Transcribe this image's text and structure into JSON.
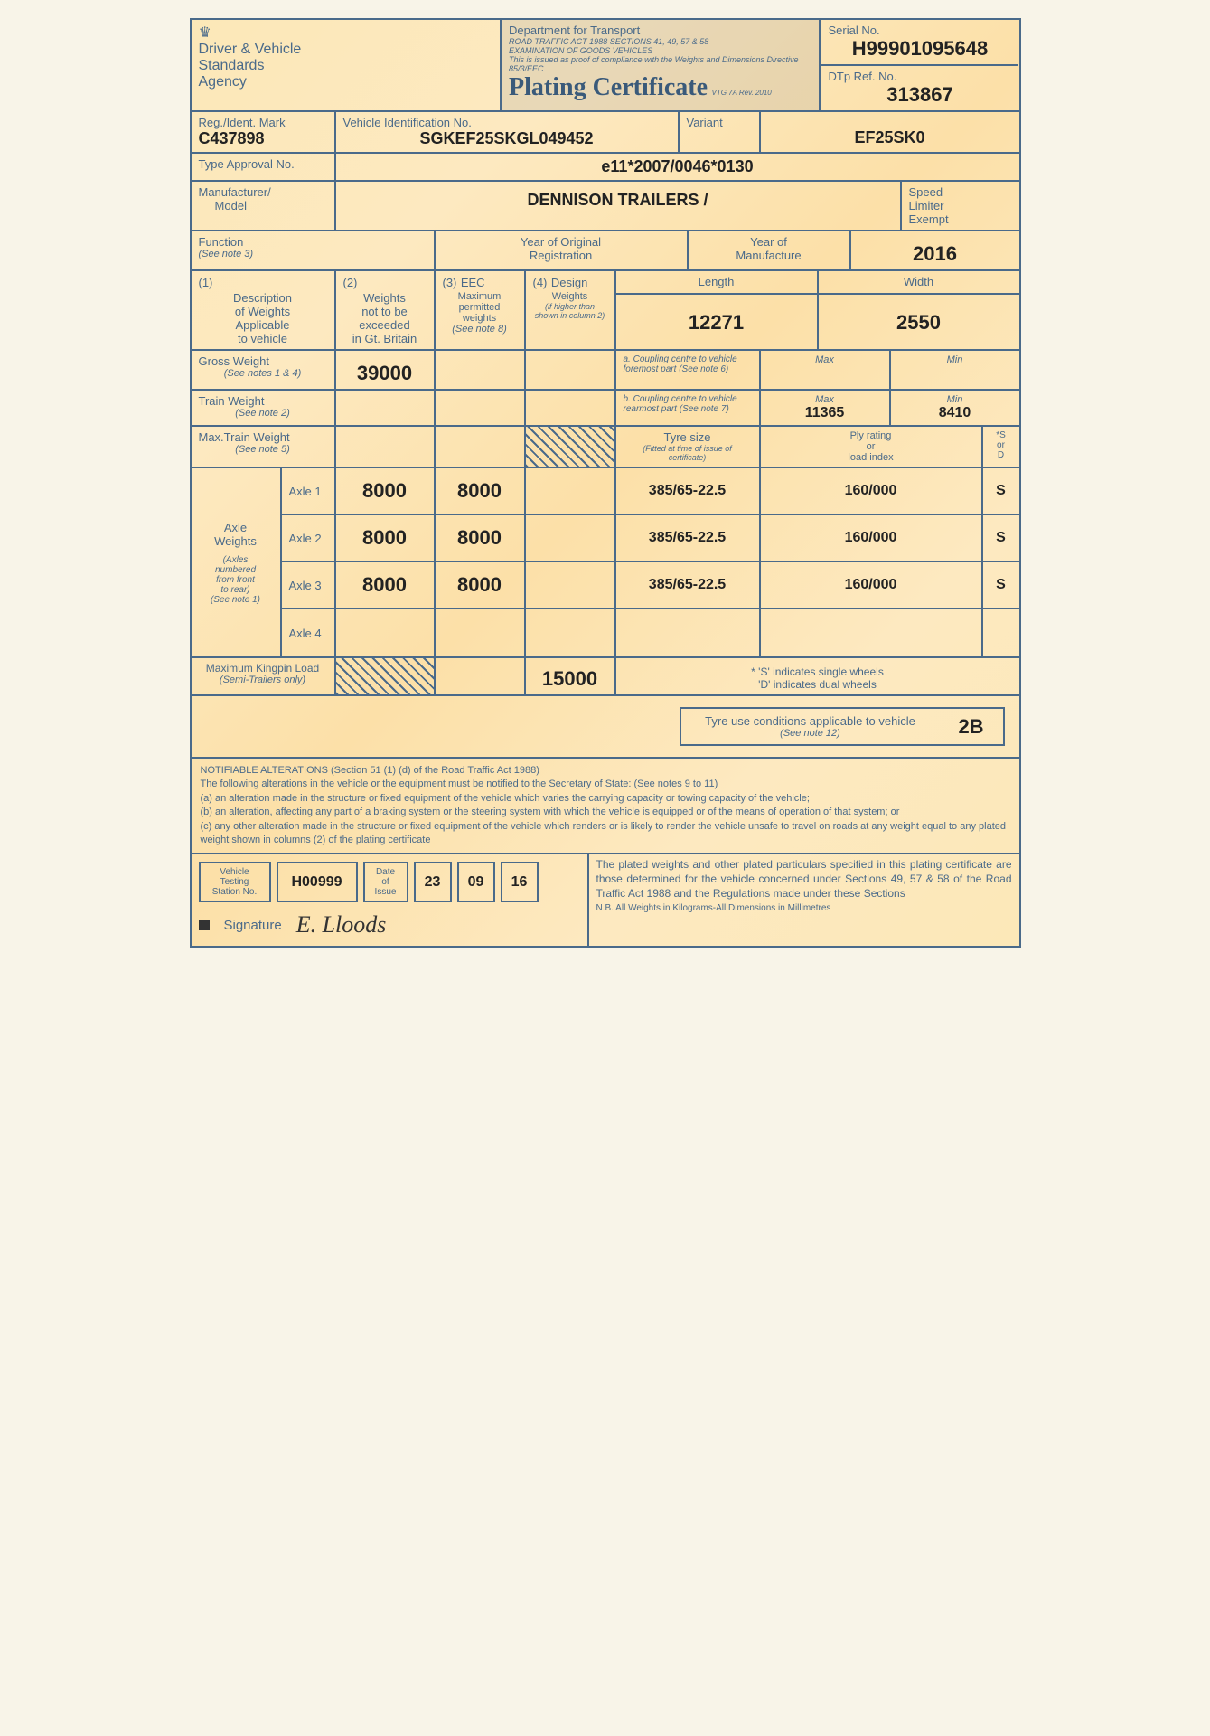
{
  "header": {
    "agency_line1": "Driver & Vehicle",
    "agency_line2": "Standards",
    "agency_line3": "Agency",
    "dept": "Department for Transport",
    "act": "ROAD TRAFFIC ACT 1988 SECTIONS 41, 49, 57 & 58",
    "exam": "EXAMINATION OF GOODS VEHICLES",
    "issued": "This is issued as proof of compliance with the Weights and Dimensions Directive 85/3/EEC",
    "title": "Plating Certificate",
    "form_ref": "VTG 7A Rev. 2010",
    "serial_label": "Serial No.",
    "serial": "H99901095648",
    "dtp_label": "DTp Ref. No.",
    "dtp": "313867"
  },
  "ident": {
    "reg_label": "Reg./Ident. Mark",
    "reg": "C437898",
    "vin_label": "Vehicle Identification No.",
    "vin": "SGKEF25SKGL049452",
    "variant_label": "Variant",
    "variant": "EF25SK0",
    "type_label": "Type Approval No.",
    "type": "e11*2007/0046*0130",
    "mfr_label": "Manufacturer/\nModel",
    "mfr": "DENNISON TRAILERS /",
    "speed_label": "Speed Limiter Exempt",
    "func_label": "Function",
    "func_note": "(See note 3)",
    "yor_label": "Year of Original Registration",
    "yom_label": "Year of Manufacture",
    "yom": "2016"
  },
  "weights": {
    "col1_label": "Description of Weights Applicable to vehicle",
    "col1_num": "(1)",
    "col2_label": "Weights not to be exceeded in Gt. Britain",
    "col2_num": "(2)",
    "col3_label": "EEC Maximum permitted weights",
    "col3_num": "(3)",
    "col3_note": "(See note 8)",
    "col4_label": "Design Weights",
    "col4_num": "(4)",
    "col4_note": "(if higher than shown in column 2)",
    "length_label": "Length",
    "length": "12271",
    "width_label": "Width",
    "width": "2550",
    "gross_label": "Gross Weight",
    "gross_note": "(See notes 1 & 4)",
    "gross": "39000",
    "train_label": "Train Weight",
    "train_note": "(See note 2)",
    "max_train_label": "Max.Train Weight",
    "max_train_note": "(See note 5)",
    "coupling_a": "a. Coupling centre to vehicle foremost part (See note 6)",
    "coupling_b": "b. Coupling centre to vehicle rearmost part (See note 7)",
    "max_label": "Max",
    "min_label": "Min",
    "b_max": "11365",
    "b_min": "8410",
    "tyre_size_label": "Tyre size",
    "tyre_size_note": "(Fitted at time of issue of certificate)",
    "ply_label": "Ply rating or load index",
    "sd_label": "*S or D",
    "axle_label": "Axle Weights",
    "axle_note": "(Axles numbered from front to rear) (See note 1)",
    "axles": [
      {
        "name": "Axle 1",
        "w1": "8000",
        "w2": "8000",
        "tyre": "385/65-22.5",
        "ply": "160/000",
        "sd": "S"
      },
      {
        "name": "Axle 2",
        "w1": "8000",
        "w2": "8000",
        "tyre": "385/65-22.5",
        "ply": "160/000",
        "sd": "S"
      },
      {
        "name": "Axle 3",
        "w1": "8000",
        "w2": "8000",
        "tyre": "385/65-22.5",
        "ply": "160/000",
        "sd": "S"
      },
      {
        "name": "Axle 4",
        "w1": "",
        "w2": "",
        "tyre": "",
        "ply": "",
        "sd": ""
      }
    ],
    "kingpin_label": "Maximum Kingpin Load",
    "kingpin_note": "(Semi-Trailers only)",
    "kingpin": "15000",
    "sd_legend1": "* 'S' indicates single wheels",
    "sd_legend2": "'D' indicates dual wheels"
  },
  "tyre_cond": {
    "label": "Tyre use conditions applicable to vehicle",
    "note": "(See note 12)",
    "value": "2B"
  },
  "notes": {
    "heading": "NOTIFIABLE ALTERATIONS (Section 51 (1) (d) of the Road Traffic Act 1988)",
    "intro": "The following alterations in the vehicle or the equipment must be notified to the Secretary of State: (See notes 9 to 11)",
    "a": "(a)  an alteration made in the structure or fixed equipment of the vehicle which varies the carrying capacity or towing capacity of the vehicle;",
    "b": "(b)  an alteration, affecting any part of a braking system or the steering system with which the vehicle is equipped or of the means of operation of that system; or",
    "c": "(c)  any other alteration made in the structure or fixed equipment of the vehicle which renders or is likely to render the vehicle unsafe to travel on roads at any weight equal to any plated weight shown in columns (2) of the plating certificate"
  },
  "footer": {
    "station_label": "Vehicle Testing Station No.",
    "station": "H00999",
    "date_label": "Date of Issue",
    "date_d": "23",
    "date_m": "09",
    "date_y": "16",
    "sig_label": "Signature",
    "declaration": "The plated weights and other plated particulars specified in this plating certificate are those determined for the vehicle concerned under Sections 49, 57 & 58 of the Road Traffic Act 1988 and the Regulations made under these Sections",
    "nb": "N.B. All Weights in Kilograms-All Dimensions in Millimetres"
  }
}
